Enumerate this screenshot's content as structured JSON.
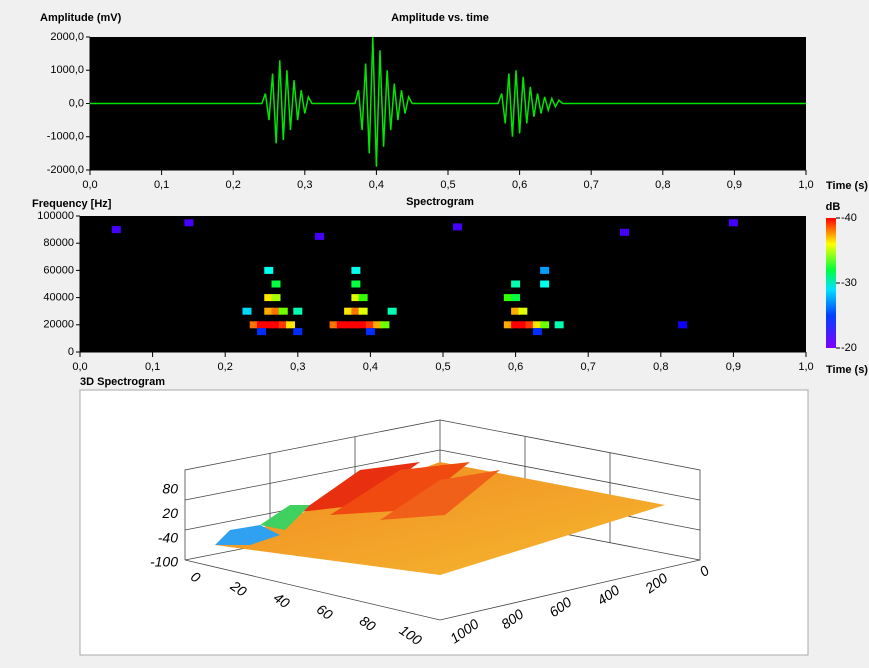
{
  "chart_data": [
    {
      "type": "line",
      "title": "Amplitude vs. time",
      "y_label": "Amplitude (mV)",
      "x_label": "Time (s)",
      "color": "#00e600",
      "x": [
        0,
        0.24,
        0.245,
        0.25,
        0.255,
        0.26,
        0.265,
        0.27,
        0.275,
        0.28,
        0.285,
        0.29,
        0.295,
        0.3,
        0.305,
        0.31,
        0.37,
        0.375,
        0.38,
        0.385,
        0.39,
        0.395,
        0.4,
        0.405,
        0.41,
        0.415,
        0.42,
        0.425,
        0.43,
        0.435,
        0.44,
        0.445,
        0.45,
        0.57,
        0.575,
        0.58,
        0.585,
        0.59,
        0.595,
        0.6,
        0.605,
        0.61,
        0.615,
        0.62,
        0.625,
        0.63,
        0.635,
        0.64,
        0.645,
        0.65,
        0.655,
        0.66,
        1
      ],
      "values": [
        0,
        0,
        300,
        -500,
        900,
        -1200,
        1300,
        -1100,
        1000,
        -800,
        700,
        -500,
        400,
        -300,
        200,
        0,
        0,
        400,
        -800,
        1200,
        -1500,
        2000,
        -1900,
        1600,
        -1300,
        1000,
        -800,
        600,
        -500,
        400,
        -300,
        200,
        0,
        0,
        300,
        -600,
        900,
        -1000,
        1000,
        -900,
        800,
        -600,
        500,
        -400,
        300,
        -300,
        200,
        -200,
        150,
        -100,
        100,
        0,
        0
      ],
      "xlim": [
        0,
        1
      ],
      "ylim": [
        -2000,
        2000
      ],
      "xticks": [
        {
          "value": 0,
          "label": "0,0"
        },
        {
          "value": 0.1,
          "label": "0,1"
        },
        {
          "value": 0.2,
          "label": "0,2"
        },
        {
          "value": 0.3,
          "label": "0,3"
        },
        {
          "value": 0.4,
          "label": "0,4"
        },
        {
          "value": 0.5,
          "label": "0,5"
        },
        {
          "value": 0.6,
          "label": "0,6"
        },
        {
          "value": 0.7,
          "label": "0,7"
        },
        {
          "value": 0.8,
          "label": "0,8"
        },
        {
          "value": 0.9,
          "label": "0,9"
        },
        {
          "value": 1,
          "label": "1,0"
        }
      ],
      "yticks": [
        {
          "value": 2000,
          "label": "2000,0"
        },
        {
          "value": 1000,
          "label": "1000,0"
        },
        {
          "value": 0,
          "label": "0,0"
        },
        {
          "value": -1000,
          "label": "-1000,0"
        },
        {
          "value": -2000,
          "label": "-2000,0"
        }
      ]
    },
    {
      "type": "heatmap",
      "title": "Spectrogram",
      "y_label": "Frequency [Hz]",
      "x_label": "Time (s)",
      "colorbar_label": "dB",
      "clim": [
        -20,
        -40
      ],
      "cticks": [
        -40,
        -30,
        -20
      ],
      "xlim": [
        0,
        1
      ],
      "ylim": [
        0,
        100000
      ],
      "xticks": [
        {
          "value": 0,
          "label": "0,0"
        },
        {
          "value": 0.1,
          "label": "0,1"
        },
        {
          "value": 0.2,
          "label": "0,2"
        },
        {
          "value": 0.3,
          "label": "0,3"
        },
        {
          "value": 0.4,
          "label": "0,4"
        },
        {
          "value": 0.5,
          "label": "0,5"
        },
        {
          "value": 0.6,
          "label": "0,6"
        },
        {
          "value": 0.7,
          "label": "0,7"
        },
        {
          "value": 0.8,
          "label": "0,8"
        },
        {
          "value": 0.9,
          "label": "0,9"
        },
        {
          "value": 1,
          "label": "1,0"
        }
      ],
      "yticks": [
        100000,
        80000,
        60000,
        40000,
        20000,
        0
      ],
      "points": [
        {
          "x": 0.23,
          "y": 30000,
          "value": -26
        },
        {
          "x": 0.24,
          "y": 20000,
          "value": -38
        },
        {
          "x": 0.25,
          "y": 20000,
          "value": -40
        },
        {
          "x": 0.26,
          "y": 20000,
          "value": -40
        },
        {
          "x": 0.27,
          "y": 20000,
          "value": -40
        },
        {
          "x": 0.28,
          "y": 20000,
          "value": -39
        },
        {
          "x": 0.29,
          "y": 20000,
          "value": -36
        },
        {
          "x": 0.3,
          "y": 30000,
          "value": -28
        },
        {
          "x": 0.26,
          "y": 30000,
          "value": -37
        },
        {
          "x": 0.27,
          "y": 30000,
          "value": -38
        },
        {
          "x": 0.28,
          "y": 30000,
          "value": -33
        },
        {
          "x": 0.26,
          "y": 40000,
          "value": -36
        },
        {
          "x": 0.27,
          "y": 40000,
          "value": -34
        },
        {
          "x": 0.27,
          "y": 50000,
          "value": -30
        },
        {
          "x": 0.26,
          "y": 60000,
          "value": -27
        },
        {
          "x": 0.25,
          "y": 15000,
          "value": -23
        },
        {
          "x": 0.3,
          "y": 15000,
          "value": -23
        },
        {
          "x": 0.35,
          "y": 20000,
          "value": -38
        },
        {
          "x": 0.36,
          "y": 20000,
          "value": -40
        },
        {
          "x": 0.37,
          "y": 20000,
          "value": -40
        },
        {
          "x": 0.38,
          "y": 20000,
          "value": -40
        },
        {
          "x": 0.39,
          "y": 20000,
          "value": -40
        },
        {
          "x": 0.4,
          "y": 20000,
          "value": -39
        },
        {
          "x": 0.41,
          "y": 20000,
          "value": -37
        },
        {
          "x": 0.42,
          "y": 20000,
          "value": -33
        },
        {
          "x": 0.43,
          "y": 30000,
          "value": -28
        },
        {
          "x": 0.37,
          "y": 30000,
          "value": -36
        },
        {
          "x": 0.38,
          "y": 30000,
          "value": -38
        },
        {
          "x": 0.39,
          "y": 30000,
          "value": -35
        },
        {
          "x": 0.38,
          "y": 40000,
          "value": -35
        },
        {
          "x": 0.39,
          "y": 40000,
          "value": -32
        },
        {
          "x": 0.38,
          "y": 50000,
          "value": -30
        },
        {
          "x": 0.38,
          "y": 60000,
          "value": -27
        },
        {
          "x": 0.4,
          "y": 15000,
          "value": -23
        },
        {
          "x": 0.59,
          "y": 20000,
          "value": -37
        },
        {
          "x": 0.6,
          "y": 20000,
          "value": -40
        },
        {
          "x": 0.61,
          "y": 20000,
          "value": -40
        },
        {
          "x": 0.62,
          "y": 20000,
          "value": -39
        },
        {
          "x": 0.63,
          "y": 20000,
          "value": -36
        },
        {
          "x": 0.64,
          "y": 20000,
          "value": -33
        },
        {
          "x": 0.66,
          "y": 20000,
          "value": -28
        },
        {
          "x": 0.6,
          "y": 30000,
          "value": -37
        },
        {
          "x": 0.61,
          "y": 30000,
          "value": -35
        },
        {
          "x": 0.59,
          "y": 40000,
          "value": -32
        },
        {
          "x": 0.6,
          "y": 40000,
          "value": -30
        },
        {
          "x": 0.6,
          "y": 50000,
          "value": -28
        },
        {
          "x": 0.64,
          "y": 50000,
          "value": -27
        },
        {
          "x": 0.64,
          "y": 60000,
          "value": -25
        },
        {
          "x": 0.63,
          "y": 15000,
          "value": -23
        },
        {
          "x": 0.83,
          "y": 20000,
          "value": -22
        },
        {
          "x": 0.05,
          "y": 90000,
          "value": -21
        },
        {
          "x": 0.15,
          "y": 95000,
          "value": -21
        },
        {
          "x": 0.33,
          "y": 85000,
          "value": -21
        },
        {
          "x": 0.52,
          "y": 92000,
          "value": -21
        },
        {
          "x": 0.75,
          "y": 88000,
          "value": -21
        },
        {
          "x": 0.9,
          "y": 95000,
          "value": -21
        }
      ]
    },
    {
      "type": "surface3d",
      "title": "3D Spectrogram",
      "xlim": [
        0,
        100
      ],
      "xticks": [
        0,
        20,
        40,
        60,
        80,
        100
      ],
      "ylim": [
        0,
        1000
      ],
      "yticks": [
        0,
        200,
        400,
        600,
        800,
        1000
      ],
      "zlim": [
        -100,
        80
      ],
      "zticks": [
        80,
        20,
        -40,
        -100
      ]
    }
  ]
}
